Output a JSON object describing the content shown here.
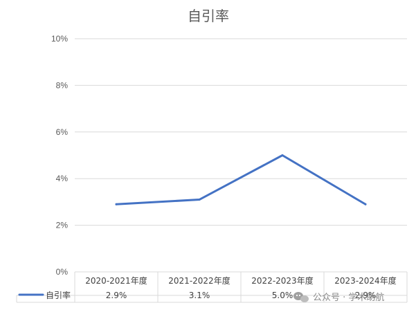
{
  "chart_data": {
    "type": "line",
    "title": "自引率",
    "categories": [
      "2020-2021年度",
      "2021-2022年度",
      "2022-2023年度",
      "2023-2024年度"
    ],
    "series": [
      {
        "name": "自引率",
        "values": [
          2.9,
          3.1,
          5.0,
          2.9
        ],
        "labels": [
          "2.9%",
          "3.1%",
          "5.0%",
          "2.9%"
        ],
        "color": "#4472C4"
      }
    ],
    "ylim": [
      0,
      10
    ],
    "yticks": [
      0,
      2,
      4,
      6,
      8,
      10
    ],
    "ytick_labels": [
      "0%",
      "2%",
      "4%",
      "6%",
      "8%",
      "10%"
    ],
    "grid": true,
    "legend": "data-table-left",
    "data_table": true
  },
  "watermark": {
    "text": "公众号 · 学术助航",
    "icon": "wechat-icon"
  }
}
